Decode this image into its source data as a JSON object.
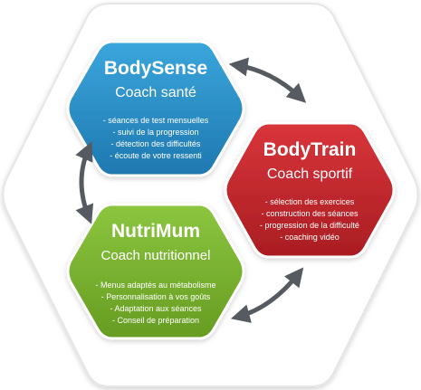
{
  "colors": {
    "bodysense": "#2a8fc7",
    "bodytrain": "#c8262c",
    "nutrimum": "#7cb52e",
    "arrow": "#555b61"
  },
  "modules": {
    "bodysense": {
      "title": "BodySense",
      "subtitle": "Coach santé",
      "items": [
        "- séances de test mensuelles",
        "- suivi de la progression",
        "- détection des difficultés",
        "- écoute de votre ressenti"
      ]
    },
    "bodytrain": {
      "title": "BodyTrain",
      "subtitle": "Coach sportif",
      "items": [
        "- sélection des exercices",
        "- construction des séances",
        "- progression de la difficulté",
        "- coaching vidéo"
      ]
    },
    "nutrimum": {
      "title": "NutriMum",
      "subtitle": "Coach nutritionnel",
      "items": [
        "- Menus adaptés au métabolisme",
        "- Personnalisation à vos goûts",
        "- Adaptation aux séances",
        "- Conseil de préparation"
      ]
    }
  },
  "connectors": [
    {
      "from": "bodysense",
      "to": "bodytrain",
      "icon": "double-arrow-icon"
    },
    {
      "from": "bodysense",
      "to": "nutrimum",
      "icon": "double-arrow-icon"
    },
    {
      "from": "nutrimum",
      "to": "bodytrain",
      "icon": "double-arrow-icon"
    }
  ]
}
